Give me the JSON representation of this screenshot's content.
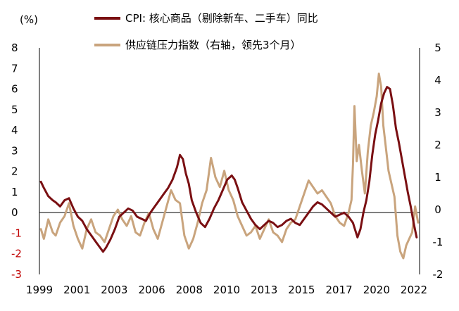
{
  "chart_data": {
    "type": "line",
    "title": "",
    "unit_label": "(%)",
    "xlabel": "",
    "ylabel": "",
    "x_tick_labels": [
      "1999",
      "2001",
      "2003",
      "2006",
      "2008",
      "2010",
      "2013",
      "2015",
      "2017",
      "2020",
      "2022"
    ],
    "xlim": [
      1998.9,
      2024.6
    ],
    "y_left": {
      "ylim": [
        -3,
        8
      ],
      "ticks": [
        8,
        7,
        6,
        5,
        4,
        3,
        2,
        1,
        0,
        -1,
        -2,
        -3
      ]
    },
    "y_right": {
      "ylim": [
        -2,
        5
      ],
      "ticks": [
        5,
        4,
        3,
        2,
        1,
        0,
        -1,
        -2
      ]
    },
    "grid": false,
    "legend_position": "top-center",
    "colors": {
      "cpi": "#7a0f12",
      "supply": "#c9a47d",
      "negative_tick": "#c00000"
    },
    "series": [
      {
        "name": "CPI: 核心商品（剔除新车、二手车）同比",
        "axis": "left",
        "x": [
          1999.0,
          1999.2,
          1999.5,
          1999.8,
          2000.0,
          2000.3,
          2000.6,
          2000.9,
          2001.2,
          2001.5,
          2001.8,
          2002.1,
          2002.4,
          2002.7,
          2003.0,
          2003.2,
          2003.4,
          2003.7,
          2004.0,
          2004.3,
          2004.6,
          2004.9,
          2005.2,
          2005.5,
          2005.8,
          2006.1,
          2006.4,
          2006.7,
          2007.0,
          2007.3,
          2007.6,
          2007.9,
          2008.2,
          2008.4,
          2008.6,
          2008.8,
          2009.0,
          2009.2,
          2009.5,
          2009.8,
          2010.1,
          2010.4,
          2010.7,
          2011.0,
          2011.3,
          2011.6,
          2011.9,
          2012.1,
          2012.3,
          2012.6,
          2012.9,
          2013.2,
          2013.5,
          2013.8,
          2014.1,
          2014.4,
          2014.7,
          2015.0,
          2015.3,
          2015.6,
          2015.9,
          2016.2,
          2016.5,
          2016.8,
          2017.1,
          2017.4,
          2017.7,
          2018.0,
          2018.3,
          2018.6,
          2018.9,
          2019.2,
          2019.5,
          2019.8,
          2020.1,
          2020.4,
          2020.6,
          2020.8,
          2021.0,
          2021.2,
          2021.4,
          2021.6,
          2021.8,
          2022.0,
          2022.2,
          2022.4,
          2022.6,
          2022.8,
          2023.0,
          2023.2,
          2023.4,
          2023.6,
          2023.8,
          2024.0,
          2024.2,
          2024.4
        ],
        "values": [
          1.5,
          1.2,
          0.8,
          0.6,
          0.5,
          0.3,
          0.6,
          0.7,
          0.2,
          -0.2,
          -0.4,
          -0.8,
          -1.1,
          -1.4,
          -1.7,
          -1.9,
          -1.7,
          -1.3,
          -0.8,
          -0.2,
          0.0,
          0.2,
          0.1,
          -0.2,
          -0.3,
          -0.4,
          0.0,
          0.3,
          0.6,
          0.9,
          1.2,
          1.6,
          2.2,
          2.8,
          2.6,
          1.9,
          1.4,
          0.6,
          0.0,
          -0.5,
          -0.7,
          -0.3,
          0.2,
          0.6,
          1.1,
          1.6,
          1.8,
          1.6,
          1.2,
          0.5,
          0.1,
          -0.3,
          -0.6,
          -0.8,
          -0.6,
          -0.4,
          -0.5,
          -0.7,
          -0.6,
          -0.4,
          -0.3,
          -0.5,
          -0.6,
          -0.3,
          0.0,
          0.3,
          0.5,
          0.4,
          0.2,
          0.0,
          -0.2,
          -0.1,
          0.0,
          -0.2,
          -0.5,
          -1.2,
          -0.8,
          0.0,
          0.6,
          1.5,
          2.8,
          3.8,
          4.5,
          5.3,
          5.8,
          6.1,
          6.0,
          5.2,
          4.1,
          3.4,
          2.6,
          1.8,
          1.0,
          0.3,
          -0.5,
          -1.2
        ]
      },
      {
        "name": "供应链压力指数（右轴，领先3个月）",
        "axis": "right",
        "x": [
          1999.0,
          1999.2,
          1999.5,
          1999.8,
          2000.0,
          2000.3,
          2000.6,
          2000.9,
          2001.2,
          2001.5,
          2001.8,
          2002.1,
          2002.4,
          2002.7,
          2003.0,
          2003.3,
          2003.6,
          2003.9,
          2004.2,
          2004.5,
          2004.8,
          2005.1,
          2005.4,
          2005.7,
          2006.0,
          2006.3,
          2006.6,
          2006.9,
          2007.2,
          2007.5,
          2007.8,
          2008.1,
          2008.4,
          2008.7,
          2009.0,
          2009.3,
          2009.6,
          2009.9,
          2010.2,
          2010.5,
          2010.8,
          2011.1,
          2011.4,
          2011.7,
          2012.0,
          2012.3,
          2012.6,
          2012.9,
          2013.2,
          2013.5,
          2013.8,
          2014.1,
          2014.4,
          2014.7,
          2015.0,
          2015.3,
          2015.6,
          2015.9,
          2016.2,
          2016.5,
          2016.8,
          2017.1,
          2017.4,
          2017.7,
          2018.0,
          2018.3,
          2018.6,
          2018.9,
          2019.2,
          2019.5,
          2019.8,
          2020.0,
          2020.1,
          2020.2,
          2020.35,
          2020.5,
          2020.7,
          2020.9,
          2021.1,
          2021.3,
          2021.5,
          2021.7,
          2021.85,
          2022.0,
          2022.15,
          2022.3,
          2022.5,
          2022.7,
          2022.9,
          2023.1,
          2023.3,
          2023.5,
          2023.7,
          2023.9,
          2024.1,
          2024.3,
          2024.5
        ],
        "values": [
          -0.6,
          -0.9,
          -0.3,
          -0.7,
          -0.8,
          -0.4,
          -0.2,
          0.2,
          -0.5,
          -0.9,
          -1.2,
          -0.6,
          -0.3,
          -0.7,
          -0.8,
          -1.0,
          -0.6,
          -0.2,
          0.0,
          -0.3,
          -0.5,
          -0.2,
          -0.7,
          -0.8,
          -0.4,
          -0.1,
          -0.6,
          -0.9,
          -0.4,
          0.1,
          0.6,
          0.3,
          0.2,
          -0.8,
          -1.2,
          -0.9,
          -0.4,
          0.2,
          0.6,
          1.6,
          1.0,
          0.7,
          1.2,
          0.6,
          0.3,
          -0.2,
          -0.5,
          -0.8,
          -0.7,
          -0.5,
          -0.9,
          -0.6,
          -0.3,
          -0.7,
          -0.8,
          -1.0,
          -0.6,
          -0.4,
          -0.3,
          0.1,
          0.5,
          0.9,
          0.7,
          0.5,
          0.6,
          0.4,
          0.2,
          -0.2,
          -0.4,
          -0.5,
          -0.1,
          0.3,
          1.4,
          3.2,
          1.5,
          2.0,
          1.2,
          0.5,
          1.8,
          2.6,
          3.0,
          3.5,
          4.2,
          3.8,
          2.6,
          2.0,
          1.2,
          0.8,
          0.4,
          -0.8,
          -1.3,
          -1.5,
          -1.1,
          -0.9,
          -0.7,
          0.1,
          -0.4
        ]
      }
    ]
  }
}
